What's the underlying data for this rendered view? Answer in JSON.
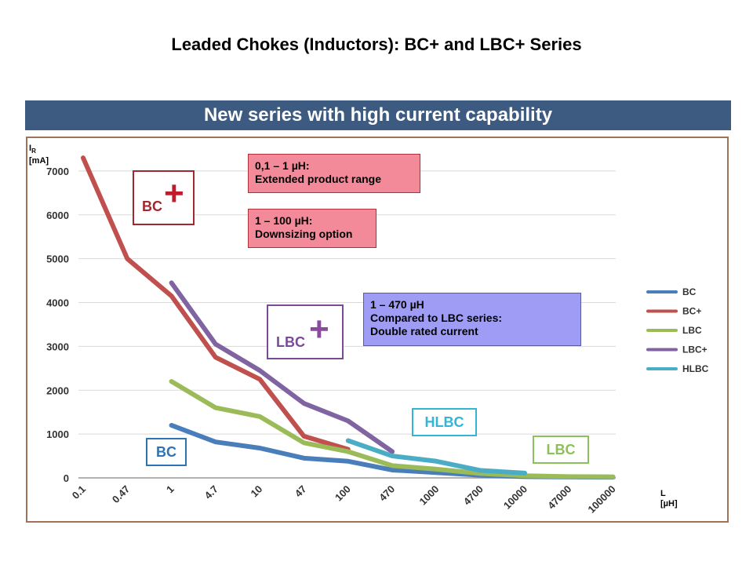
{
  "slide": {
    "title": "Leaded Chokes (Inductors): BC+ and LBC+ Series",
    "banner": "New series with high current capability"
  },
  "colors": {
    "banner_bg": "#3d5b80",
    "frame_border": "#a07358",
    "BC": "#4a7ebb",
    "BC+": "#c0504d",
    "LBC": "#9bbb59",
    "LBC+": "#8064a2",
    "HLBC": "#4bacc6"
  },
  "annotations": {
    "bc_plus_box": {
      "label": "BC",
      "plus": "+"
    },
    "lbc_plus_box": {
      "label": "LBC",
      "plus": "+"
    },
    "note_range": {
      "line1": "0,1 – 1 µH:",
      "line2": "Extended product range"
    },
    "note_downsizing": {
      "line1": "1 – 100 µH:",
      "line2": "Downsizing option"
    },
    "note_lbc": {
      "line1": "1 – 470 µH",
      "line2": "Compared to LBC series:",
      "line3": "Double rated current"
    },
    "label_bc": "BC",
    "label_hlbc": "HLBC",
    "label_lbc": "LBC"
  },
  "chart_data": {
    "type": "line",
    "ylabel_line1": "IR",
    "ylabel_sub": "R",
    "ylabel_line2": "[mA]",
    "xlabel_line1": "L",
    "xlabel_line2": "[µH]",
    "ylim": [
      0,
      7500
    ],
    "yticks": [
      0,
      1000,
      2000,
      3000,
      4000,
      5000,
      6000,
      7000
    ],
    "categories": [
      "0.1",
      "0.47",
      "1",
      "4.7",
      "10",
      "47",
      "100",
      "470",
      "1000",
      "4700",
      "10000",
      "47000",
      "100000"
    ],
    "legend_position": "right",
    "series": [
      {
        "name": "BC",
        "values": [
          null,
          null,
          1200,
          820,
          680,
          450,
          380,
          180,
          120,
          60,
          30,
          20,
          15
        ]
      },
      {
        "name": "BC+",
        "values": [
          7300,
          5000,
          4150,
          2750,
          2250,
          950,
          650,
          null,
          null,
          null,
          null,
          null,
          null
        ]
      },
      {
        "name": "LBC",
        "values": [
          null,
          null,
          2200,
          1600,
          1400,
          800,
          600,
          280,
          200,
          100,
          50,
          30,
          25
        ]
      },
      {
        "name": "LBC+",
        "values": [
          null,
          null,
          4450,
          3050,
          2450,
          1700,
          1300,
          600,
          null,
          null,
          null,
          null,
          null
        ]
      },
      {
        "name": "HLBC",
        "values": [
          null,
          null,
          null,
          null,
          null,
          null,
          850,
          500,
          380,
          170,
          110,
          null,
          null
        ]
      }
    ]
  }
}
